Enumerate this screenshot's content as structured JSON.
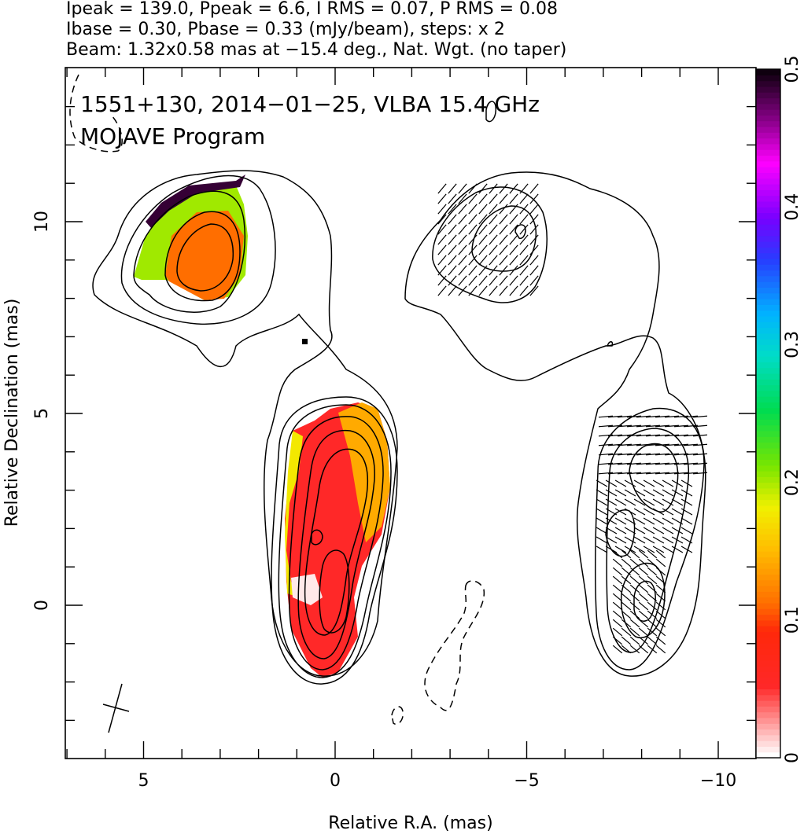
{
  "header": {
    "line1": "Ipeak = 139.0, Ppeak = 6.6, I RMS = 0.07, P RMS = 0.08",
    "line2": "Ibase = 0.30, Pbase = 0.33 (mJy/beam), steps: x 2",
    "line3": "Beam: 1.32x0.58 mas at −15.4 deg., Nat. Wgt. (no taper)"
  },
  "chart_data": {
    "type": "heatmap",
    "title": "1551+130, 2014−01−25, VLBA 15.4 GHz",
    "subtitle": "MOJAVE Program",
    "xlabel": "Relative R.A. (mas)",
    "ylabel": "Relative Declination (mas)",
    "xlim": [
      7,
      -11
    ],
    "ylim": [
      -4,
      14
    ],
    "x_ticks": [
      "5",
      "0",
      "−5",
      "−10"
    ],
    "x_tick_values": [
      5,
      0,
      -5,
      -10
    ],
    "y_ticks": [
      "0",
      "5",
      "10"
    ],
    "y_tick_values": [
      0,
      5,
      10
    ],
    "colorbar": {
      "range": [
        0,
        0.5
      ],
      "tick_labels": [
        "0",
        "0.1",
        "0.2",
        "0.3",
        "0.4",
        "0.5"
      ],
      "tick_values": [
        0,
        0.1,
        0.2,
        0.3,
        0.4,
        0.5
      ]
    },
    "panels": [
      "fractional polarization colour map with total-intensity contours",
      "total-intensity contours with polarization EVPA ticks"
    ],
    "contour_base_mJy_per_beam": 0.3,
    "contour_step_factor": 2,
    "beam": {
      "major_mas": 1.32,
      "minor_mas": 0.58,
      "pa_deg": -15.4
    }
  }
}
